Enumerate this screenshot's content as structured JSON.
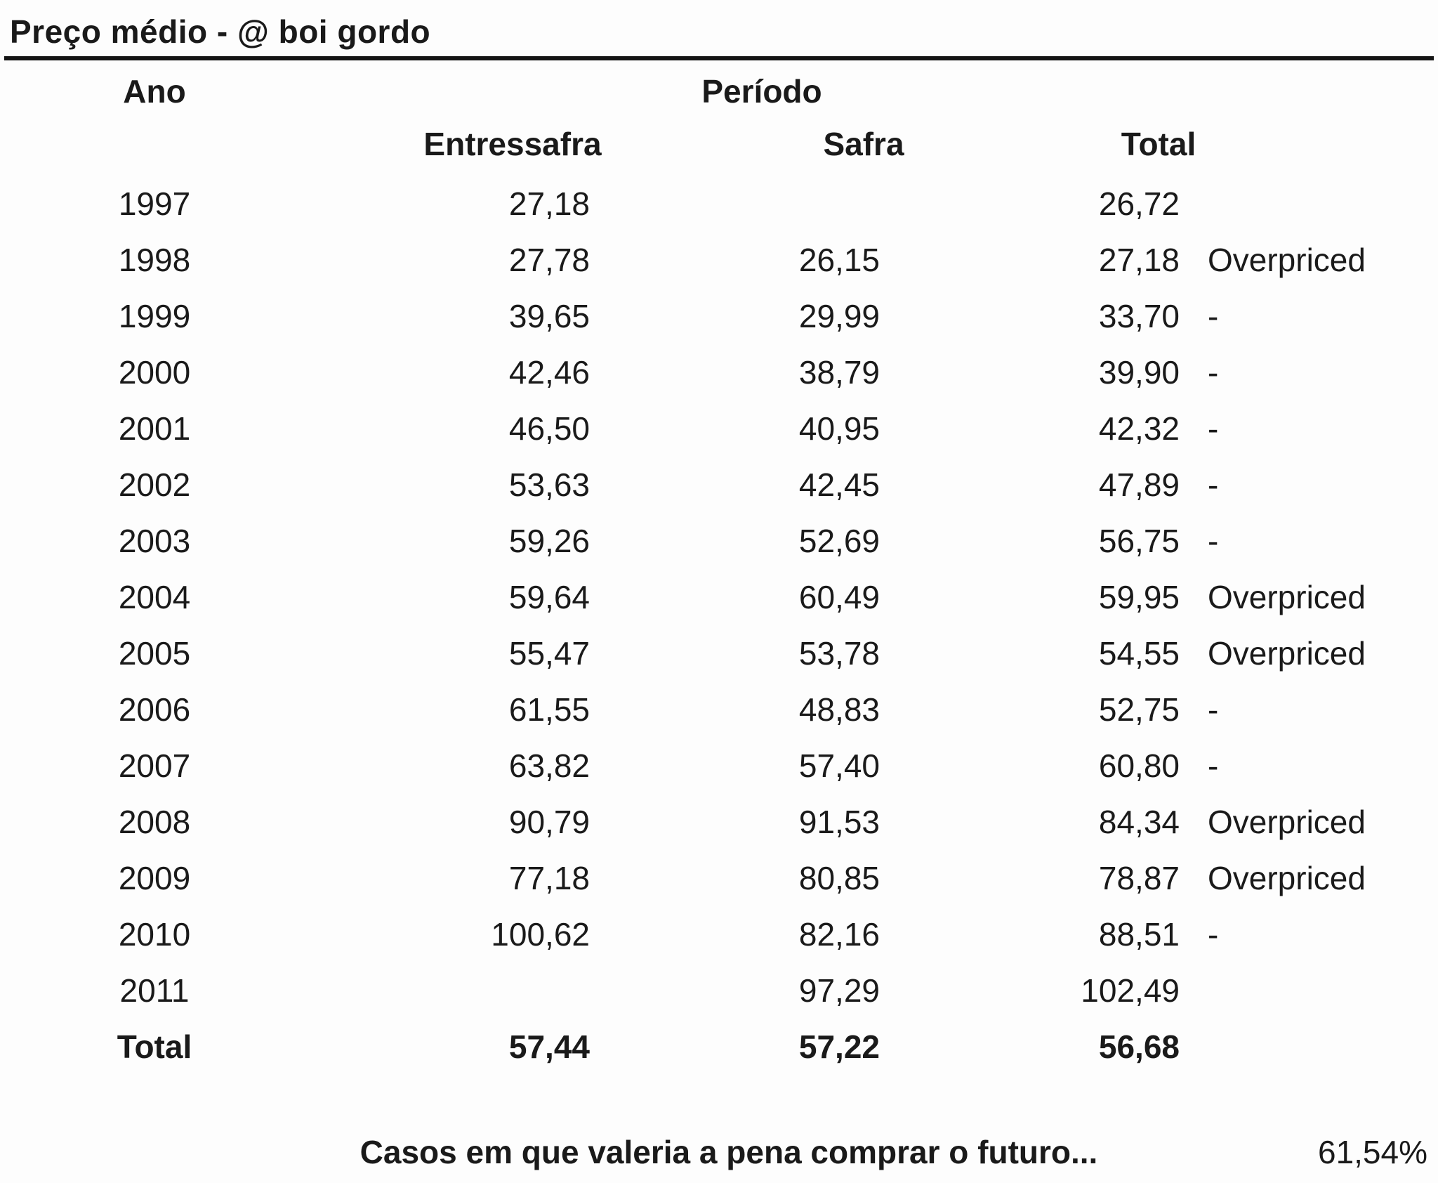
{
  "title": "Preço médio - @ boi gordo",
  "table": {
    "header_year": "Ano",
    "header_period": "Período",
    "subheaders": {
      "entressafra": "Entressafra",
      "safra": "Safra",
      "total": "Total"
    },
    "rows": [
      {
        "year": "1997",
        "entressafra": "27,18",
        "safra": "",
        "total": "26,72",
        "note": ""
      },
      {
        "year": "1998",
        "entressafra": "27,78",
        "safra": "26,15",
        "total": "27,18",
        "note": "Overpriced"
      },
      {
        "year": "1999",
        "entressafra": "39,65",
        "safra": "29,99",
        "total": "33,70",
        "note": "-"
      },
      {
        "year": "2000",
        "entressafra": "42,46",
        "safra": "38,79",
        "total": "39,90",
        "note": "-"
      },
      {
        "year": "2001",
        "entressafra": "46,50",
        "safra": "40,95",
        "total": "42,32",
        "note": "-"
      },
      {
        "year": "2002",
        "entressafra": "53,63",
        "safra": "42,45",
        "total": "47,89",
        "note": "-"
      },
      {
        "year": "2003",
        "entressafra": "59,26",
        "safra": "52,69",
        "total": "56,75",
        "note": "-"
      },
      {
        "year": "2004",
        "entressafra": "59,64",
        "safra": "60,49",
        "total": "59,95",
        "note": "Overpriced"
      },
      {
        "year": "2005",
        "entressafra": "55,47",
        "safra": "53,78",
        "total": "54,55",
        "note": "Overpriced"
      },
      {
        "year": "2006",
        "entressafra": "61,55",
        "safra": "48,83",
        "total": "52,75",
        "note": "-"
      },
      {
        "year": "2007",
        "entressafra": "63,82",
        "safra": "57,40",
        "total": "60,80",
        "note": "-"
      },
      {
        "year": "2008",
        "entressafra": "90,79",
        "safra": "91,53",
        "total": "84,34",
        "note": "Overpriced"
      },
      {
        "year": "2009",
        "entressafra": "77,18",
        "safra": "80,85",
        "total": "78,87",
        "note": "Overpriced"
      },
      {
        "year": "2010",
        "entressafra": "100,62",
        "safra": "82,16",
        "total": "88,51",
        "note": "-"
      },
      {
        "year": "2011",
        "entressafra": "",
        "safra": "97,29",
        "total": "102,49",
        "note": ""
      },
      {
        "year": "Total",
        "entressafra": "57,44",
        "safra": "57,22",
        "total": "56,68",
        "note": "",
        "bold": true
      }
    ]
  },
  "footer": {
    "label": "Casos em que valeria a pena comprar o futuro...",
    "value": "61,54%"
  }
}
